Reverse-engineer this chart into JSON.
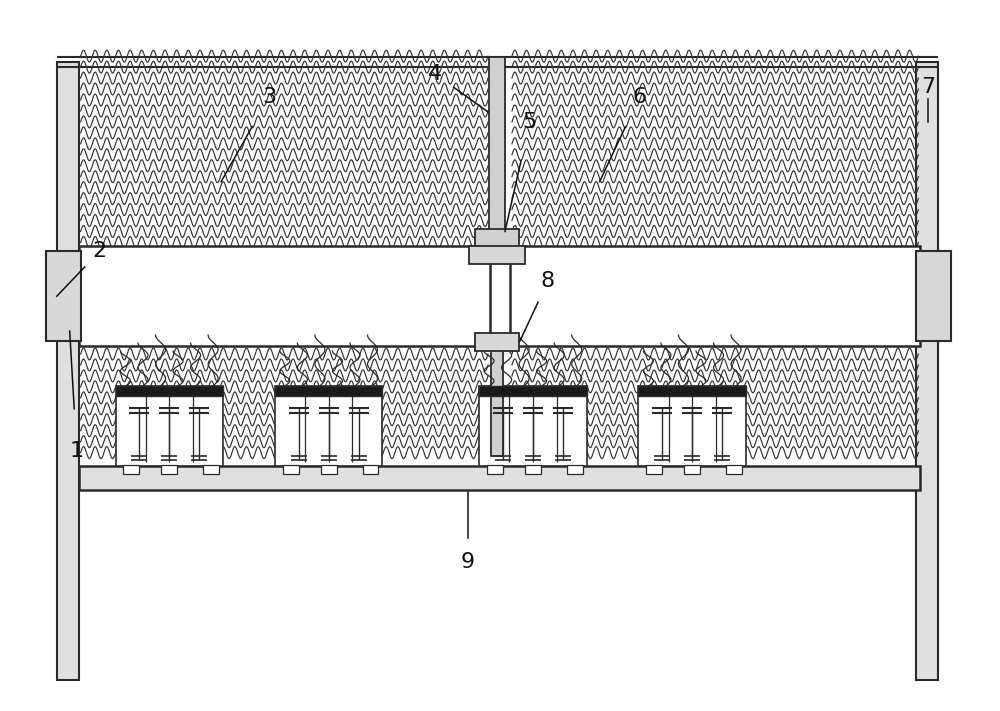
{
  "bg_color": "#ffffff",
  "line_color": "#2a2a2a",
  "label_color": "#111111",
  "fig_width": 10.0,
  "fig_height": 7.11,
  "dpi": 100
}
